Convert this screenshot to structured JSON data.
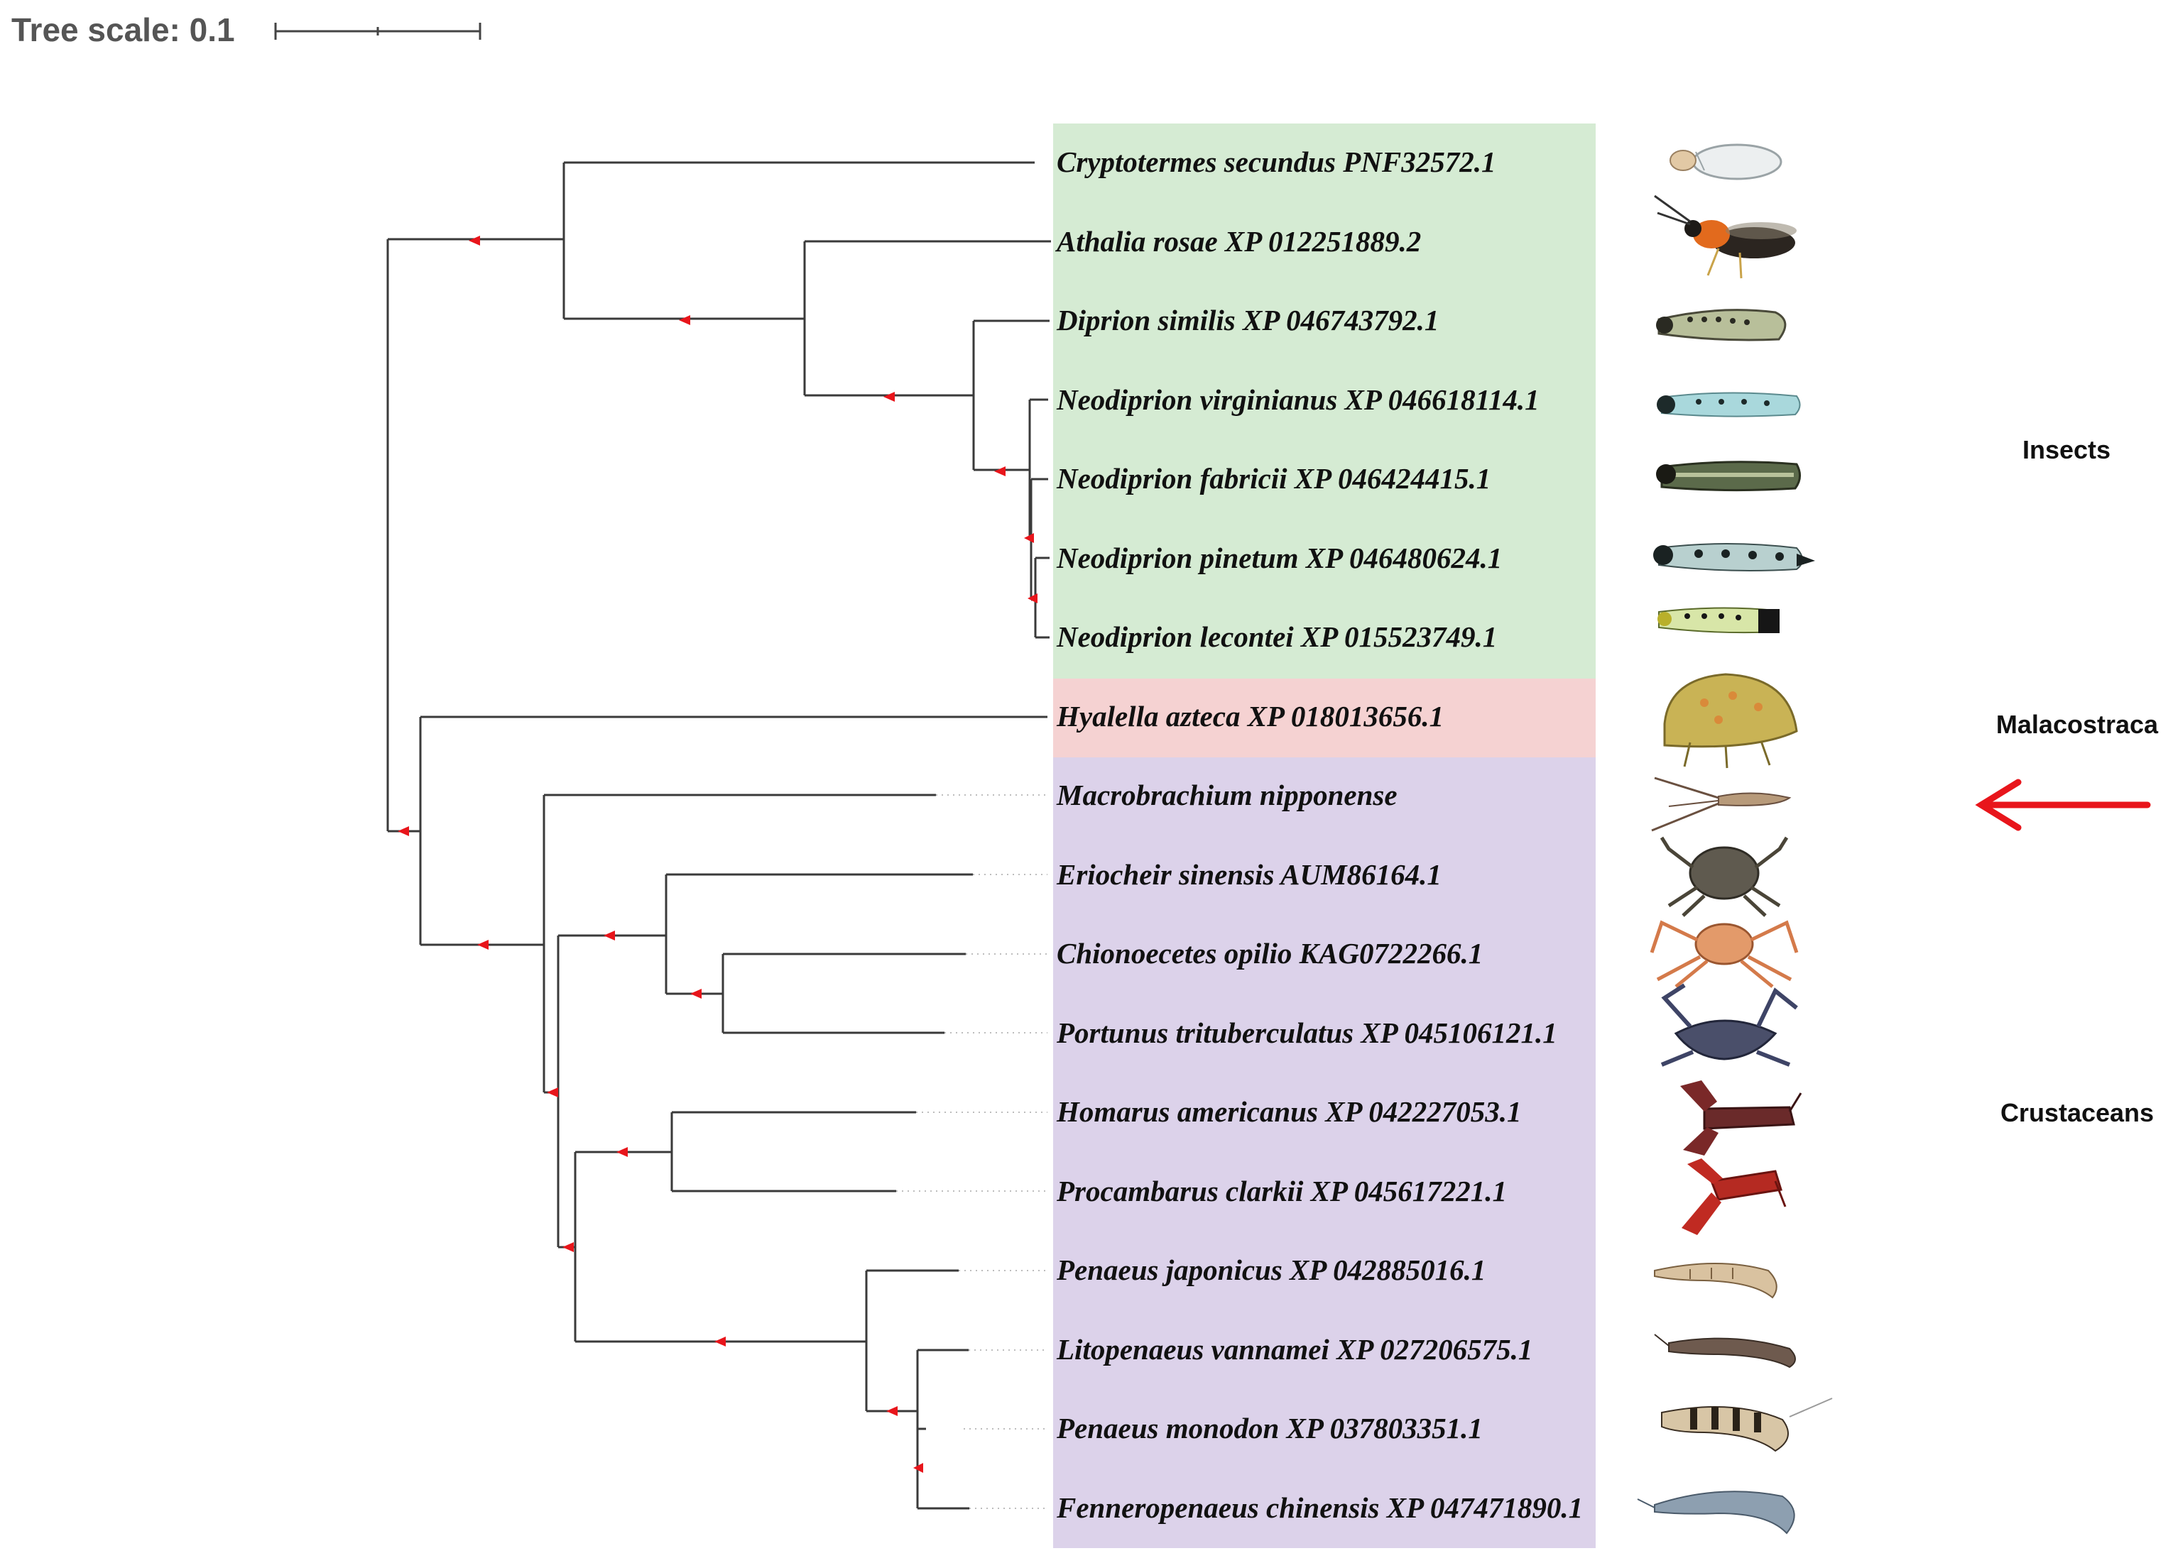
{
  "tree_scale": {
    "label": "Tree scale: 0.1",
    "value": 0.1
  },
  "colors": {
    "insects_bg": "#d5ebd3",
    "malacostraca_bg": "#f5d2d2",
    "crustaceans_bg": "#dcd2ea",
    "node_marker": "#e8151b",
    "arrow": "#e8151b",
    "branch": "#3a3a3a"
  },
  "groups": [
    {
      "id": "insects",
      "label": "Insects"
    },
    {
      "id": "malacostraca",
      "label": "Malacostraca"
    },
    {
      "id": "crustaceans",
      "label": "Crustaceans"
    }
  ],
  "taxa": [
    {
      "label": "Cryptotermes secundus PNF32572.1",
      "group": "insects",
      "icon": "termite-icon"
    },
    {
      "label": "Athalia rosae XP 012251889.2",
      "group": "insects",
      "icon": "sawfly-icon"
    },
    {
      "label": "Diprion similis XP 046743792.1",
      "group": "insects",
      "icon": "larva-icon"
    },
    {
      "label": "Neodiprion virginianus XP 046618114.1",
      "group": "insects",
      "icon": "larva-icon"
    },
    {
      "label": "Neodiprion fabricii XP 046424415.1",
      "group": "insects",
      "icon": "larva-icon"
    },
    {
      "label": "Neodiprion pinetum XP 046480624.1",
      "group": "insects",
      "icon": "larva-icon"
    },
    {
      "label": "Neodiprion lecontei XP 015523749.1",
      "group": "insects",
      "icon": "larva-icon"
    },
    {
      "label": "Hyalella azteca XP 018013656.1",
      "group": "malacostraca",
      "icon": "amphipod-icon"
    },
    {
      "label": "Macrobrachium nipponense",
      "group": "crustaceans",
      "icon": "prawn-icon",
      "highlighted": true
    },
    {
      "label": "Eriocheir sinensis AUM86164.1",
      "group": "crustaceans",
      "icon": "crab-icon"
    },
    {
      "label": "Chionoecetes opilio KAG0722266.1",
      "group": "crustaceans",
      "icon": "crab-icon"
    },
    {
      "label": "Portunus trituberculatus XP 045106121.1",
      "group": "crustaceans",
      "icon": "crab-icon"
    },
    {
      "label": "Homarus americanus XP 042227053.1",
      "group": "crustaceans",
      "icon": "lobster-icon"
    },
    {
      "label": "Procambarus clarkii XP 045617221.1",
      "group": "crustaceans",
      "icon": "crayfish-icon"
    },
    {
      "label": "Penaeus japonicus XP 042885016.1",
      "group": "crustaceans",
      "icon": "shrimp-icon"
    },
    {
      "label": "Litopenaeus vannamei XP 027206575.1",
      "group": "crustaceans",
      "icon": "shrimp-icon"
    },
    {
      "label": "Penaeus monodon XP 037803351.1",
      "group": "crustaceans",
      "icon": "shrimp-icon"
    },
    {
      "label": "Fenneropenaeus chinensis XP 047471890.1",
      "group": "crustaceans",
      "icon": "shrimp-icon"
    }
  ]
}
